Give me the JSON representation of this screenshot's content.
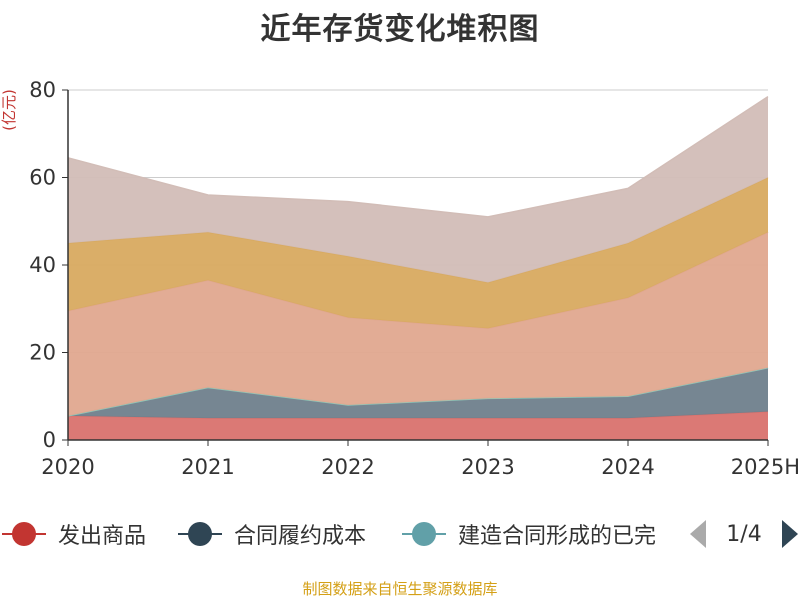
{
  "chart_data": {
    "type": "area",
    "stacked": true,
    "title": "近年存货变化堆积图",
    "ylabel": "(亿元)",
    "xlabel": "",
    "categories": [
      "2020",
      "2021",
      "2022",
      "2023",
      "2024",
      "2025H"
    ],
    "ylim": [
      0,
      80
    ],
    "yticks": [
      0,
      20,
      40,
      60,
      80
    ],
    "grid": true,
    "legend_position": "bottom",
    "series": [
      {
        "name": "发出商品",
        "color": "#d9726e",
        "values": [
          5.5,
          5.0,
          5.0,
          5.0,
          5.0,
          6.5
        ]
      },
      {
        "name": "合同履约成本",
        "color": "#6f7f8c",
        "values": [
          0.0,
          7.0,
          3.0,
          4.5,
          5.0,
          10.0
        ]
      },
      {
        "name": "建造合同形成的已完",
        "color": "#8fc6b8",
        "values": [
          0.0,
          0.0,
          0.0,
          0.0,
          0.0,
          0.0
        ]
      },
      {
        "name": "",
        "color": "#e0a88f",
        "values": [
          24.0,
          24.5,
          20.0,
          16.0,
          22.5,
          31.0
        ]
      },
      {
        "name": "",
        "color": "#d8aa60",
        "values": [
          15.5,
          11.0,
          14.0,
          10.5,
          12.5,
          12.5
        ]
      },
      {
        "name": "",
        "color": "#d2bdb7",
        "values": [
          19.5,
          8.5,
          12.5,
          15.0,
          12.5,
          18.5
        ]
      }
    ]
  },
  "legend": {
    "items": [
      {
        "label": "发出商品",
        "color": "#c23531"
      },
      {
        "label": "合同履约成本",
        "color": "#2f4554"
      },
      {
        "label": "建造合同形成的已完",
        "color": "#61a0a8"
      }
    ],
    "page_text": "1/4"
  },
  "source_note": "制图数据来自恒生聚源数据库"
}
